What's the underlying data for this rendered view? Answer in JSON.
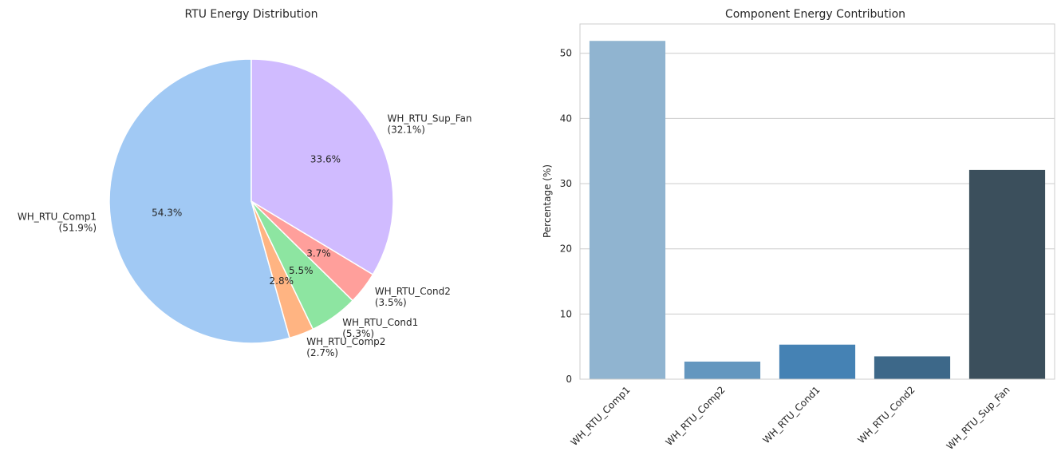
{
  "chart_data": [
    {
      "type": "pie",
      "title": "RTU Energy Distribution",
      "slices": [
        {
          "label": "WH_RTU_Comp1",
          "legend_value": "(51.9%)",
          "autopct": "54.3%",
          "value": 54.3,
          "color": "#a1c9f4"
        },
        {
          "label": "WH_RTU_Comp2",
          "legend_value": "(2.7%)",
          "autopct": "2.8%",
          "value": 2.8,
          "color": "#ffb482"
        },
        {
          "label": "WH_RTU_Cond1",
          "legend_value": "(5.3%)",
          "autopct": "5.5%",
          "value": 5.5,
          "color": "#8de5a1"
        },
        {
          "label": "WH_RTU_Cond2",
          "legend_value": "(3.5%)",
          "autopct": "3.7%",
          "value": 3.7,
          "color": "#ff9f9b"
        },
        {
          "label": "WH_RTU_Sup_Fan",
          "legend_value": "(32.1%)",
          "autopct": "33.6%",
          "value": 33.6,
          "color": "#d0bbff"
        }
      ],
      "start_angle_deg": 90,
      "direction": "counterclockwise"
    },
    {
      "type": "bar",
      "title": "Component Energy Contribution",
      "xlabel": "",
      "ylabel": "Percentage (%)",
      "categories": [
        "WH_RTU_Comp1",
        "WH_RTU_Comp2",
        "WH_RTU_Cond1",
        "WH_RTU_Cond2",
        "WH_RTU_Sup_Fan"
      ],
      "values": [
        51.9,
        2.7,
        5.3,
        3.5,
        32.1
      ],
      "colors": [
        "#90b4d0",
        "#6497bf",
        "#4582b4",
        "#3d6889",
        "#3b4f5c"
      ],
      "ylim": [
        0,
        54.5
      ],
      "yticks": [
        0,
        10,
        20,
        30,
        40,
        50
      ],
      "grid": "horizontal",
      "xtick_rotation_deg": 45
    }
  ]
}
